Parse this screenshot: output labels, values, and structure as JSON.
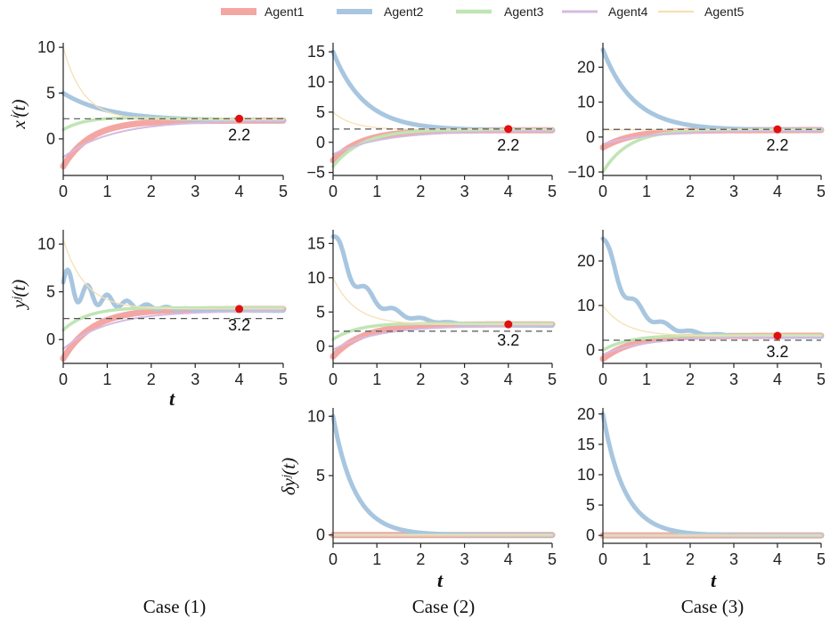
{
  "legend": [
    {
      "name": "Agent1",
      "color": "#f4a6a3"
    },
    {
      "name": "Agent2",
      "color": "#a8c6df"
    },
    {
      "name": "Agent3",
      "color": "#bfe5b4"
    },
    {
      "name": "Agent4",
      "color": "#d3bbe0"
    },
    {
      "name": "Agent5",
      "color": "#f7dfb5"
    }
  ],
  "case_labels": [
    "Case (1)",
    "Case (2)",
    "Case (3)"
  ],
  "t_label": "t",
  "ylabels": {
    "x": "xⁱ(t)",
    "y": "yʲ(t)",
    "dy": "δyʲ(t)"
  },
  "chart_data": [
    {
      "id": "x1",
      "type": "line",
      "ylabel": "xⁱ(t)",
      "xlim": [
        0,
        5
      ],
      "ylim": [
        -4,
        10.5
      ],
      "xticks": [
        0,
        1,
        2,
        3,
        4,
        5
      ],
      "yticks": [
        0,
        5,
        10
      ],
      "ref": 2.2,
      "marker": {
        "x": 4,
        "y": 2.2,
        "label": "2.2"
      },
      "series": [
        {
          "name": "Agent1",
          "init": -3,
          "final": 2.0,
          "rate": 1.6
        },
        {
          "name": "Agent2",
          "init": 5,
          "final": 2.0,
          "rate": 1.0
        },
        {
          "name": "Agent3",
          "init": 1,
          "final": 2.1,
          "rate": 1.2,
          "bump": 1.2
        },
        {
          "name": "Agent4",
          "init": -2,
          "final": 2.0,
          "rate": 0.9
        },
        {
          "name": "Agent5",
          "init": 10,
          "final": 2.1,
          "rate": 2.2
        }
      ]
    },
    {
      "id": "x2",
      "type": "line",
      "xlim": [
        0,
        5
      ],
      "ylim": [
        -5.5,
        16.5
      ],
      "xticks": [
        0,
        1,
        2,
        3,
        4,
        5
      ],
      "yticks": [
        -5,
        0,
        5,
        10,
        15
      ],
      "ref": 2.2,
      "marker": {
        "x": 4,
        "y": 2.2,
        "label": "2.2"
      },
      "series": [
        {
          "name": "Agent1",
          "init": -3,
          "final": 2.0,
          "rate": 1.5
        },
        {
          "name": "Agent2",
          "init": 15,
          "final": 2.0,
          "rate": 1.4
        },
        {
          "name": "Agent3",
          "init": -4,
          "final": 2.1,
          "rate": 1.3,
          "bump": 1.0
        },
        {
          "name": "Agent4",
          "init": -2,
          "final": 1.9,
          "rate": 0.9
        },
        {
          "name": "Agent5",
          "init": 5,
          "final": 2.1,
          "rate": 2.2
        }
      ]
    },
    {
      "id": "x3",
      "type": "line",
      "xlim": [
        0,
        5
      ],
      "ylim": [
        -11,
        27
      ],
      "xticks": [
        0,
        1,
        2,
        3,
        4,
        5
      ],
      "yticks": [
        -10,
        0,
        10,
        20
      ],
      "ref": 2.2,
      "marker": {
        "x": 4,
        "y": 2.2,
        "label": "2.2"
      },
      "series": [
        {
          "name": "Agent1",
          "init": -3,
          "final": 2.0,
          "rate": 1.5
        },
        {
          "name": "Agent2",
          "init": 25,
          "final": 2.0,
          "rate": 1.4
        },
        {
          "name": "Agent3",
          "init": -10,
          "final": 2.1,
          "rate": 1.6,
          "bump": 1.0
        },
        {
          "name": "Agent4",
          "init": -2,
          "final": 1.9,
          "rate": 0.9
        },
        {
          "name": "Agent5",
          "init": 2,
          "final": 2.1,
          "rate": 2.0
        }
      ]
    },
    {
      "id": "y1",
      "type": "line",
      "ylabel": "yʲ(t)",
      "xlim": [
        0,
        5
      ],
      "ylim": [
        -2.5,
        11.5
      ],
      "xticks": [
        0,
        1,
        2,
        3,
        4,
        5
      ],
      "yticks": [
        0,
        5,
        10
      ],
      "ref": 2.2,
      "marker": {
        "x": 4,
        "y": 3.2,
        "label": "3.2"
      },
      "series": [
        {
          "name": "Agent1",
          "init": -2,
          "final": 3.2,
          "rate": 1.5
        },
        {
          "name": "Agent2",
          "init": 6,
          "final": 3.0,
          "rate": 1.0,
          "osc": 1.8,
          "freq": 14
        },
        {
          "name": "Agent3",
          "init": 1,
          "final": 3.3,
          "rate": 1.3,
          "bump": 1.0
        },
        {
          "name": "Agent4",
          "init": -1,
          "final": 3.0,
          "rate": 1.0
        },
        {
          "name": "Agent5",
          "init": 10.5,
          "final": 3.2,
          "rate": 2.0
        }
      ]
    },
    {
      "id": "y2",
      "type": "line",
      "xlim": [
        0,
        5
      ],
      "ylim": [
        -2.5,
        17
      ],
      "xticks": [
        0,
        1,
        2,
        3,
        4,
        5
      ],
      "yticks": [
        0,
        5,
        10,
        15
      ],
      "ref": 2.2,
      "marker": {
        "x": 4,
        "y": 3.2,
        "label": "3.2"
      },
      "series": [
        {
          "name": "Agent1",
          "init": -1.5,
          "final": 3.2,
          "rate": 1.5
        },
        {
          "name": "Agent2",
          "init": 16,
          "final": 3.0,
          "rate": 1.3,
          "osc": 1.8,
          "freq": 10
        },
        {
          "name": "Agent3",
          "init": 1,
          "final": 3.3,
          "rate": 1.3,
          "bump": 1.0
        },
        {
          "name": "Agent4",
          "init": -0.5,
          "final": 3.0,
          "rate": 1.0
        },
        {
          "name": "Agent5",
          "init": 10,
          "final": 3.2,
          "rate": 2.0
        }
      ]
    },
    {
      "id": "y3",
      "type": "line",
      "xlim": [
        0,
        5
      ],
      "ylim": [
        -3,
        27
      ],
      "xticks": [
        0,
        1,
        2,
        3,
        4,
        5
      ],
      "yticks": [
        0,
        10,
        20
      ],
      "ref": 2.2,
      "marker": {
        "x": 4,
        "y": 3.2,
        "label": "3.2"
      },
      "series": [
        {
          "name": "Agent1",
          "init": -2,
          "final": 3.2,
          "rate": 1.5
        },
        {
          "name": "Agent2",
          "init": 25,
          "final": 3.0,
          "rate": 1.5,
          "osc": 2.5,
          "freq": 10
        },
        {
          "name": "Agent3",
          "init": 0,
          "final": 3.3,
          "rate": 1.3,
          "bump": 1.0
        },
        {
          "name": "Agent4",
          "init": -1,
          "final": 3.0,
          "rate": 1.0
        },
        {
          "name": "Agent5",
          "init": 10,
          "final": 3.2,
          "rate": 2.0
        }
      ]
    },
    {
      "id": "dy2",
      "type": "line",
      "ylabel": "δyʲ(t)",
      "xlim": [
        0,
        5
      ],
      "ylim": [
        -0.7,
        10.7
      ],
      "xticks": [
        0,
        1,
        2,
        3,
        4,
        5
      ],
      "yticks": [
        0,
        5,
        10
      ],
      "xlabel": "t",
      "series": [
        {
          "name": "Agent1",
          "init": 0,
          "final": 0,
          "rate": 1
        },
        {
          "name": "Agent2",
          "init": 10,
          "final": 0,
          "rate": 2.0
        },
        {
          "name": "Agent3",
          "init": 0,
          "final": 0,
          "rate": 1
        },
        {
          "name": "Agent4",
          "init": 0,
          "final": 0,
          "rate": 1
        },
        {
          "name": "Agent5",
          "init": 0,
          "final": 0,
          "rate": 1
        }
      ]
    },
    {
      "id": "dy3",
      "type": "line",
      "xlim": [
        0,
        5
      ],
      "ylim": [
        -1.3,
        21
      ],
      "xticks": [
        0,
        1,
        2,
        3,
        4,
        5
      ],
      "yticks": [
        0,
        5,
        10,
        15,
        20
      ],
      "xlabel": "t",
      "series": [
        {
          "name": "Agent1",
          "init": 0,
          "final": 0,
          "rate": 1
        },
        {
          "name": "Agent2",
          "init": 20,
          "final": 0,
          "rate": 2.0
        },
        {
          "name": "Agent3",
          "init": 0,
          "final": 0,
          "rate": 1
        },
        {
          "name": "Agent4",
          "init": 0,
          "final": 0,
          "rate": 1
        },
        {
          "name": "Agent5",
          "init": 0,
          "final": 0,
          "rate": 1
        }
      ]
    }
  ]
}
